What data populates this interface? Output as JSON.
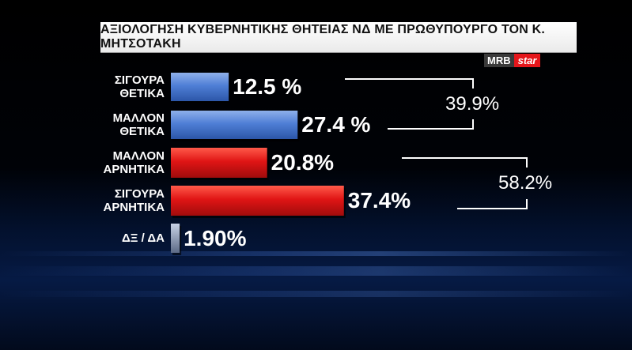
{
  "header": {
    "title": "ΑΞΙΟΛΟΓΗΣΗ ΚΥΒΕΡΝΗΤΙΚΗΣ ΘΗΤΕΙΑΣ ΝΔ ΜΕ ΠΡΩΘΥΠΟΥΡΓΟ ΤΟΝ Κ. ΜΗΤΣΟΤΑΚΗ",
    "logo_left": "MRB",
    "logo_right": "star"
  },
  "chart_data": {
    "type": "bar",
    "orientation": "horizontal",
    "title": "ΑΞΙΟΛΟΓΗΣΗ ΚΥΒΕΡΝΗΤΙΚΗΣ ΘΗΤΕΙΑΣ ΝΔ ΜΕ ΠΡΩΘΥΠΟΥΡΓΟ ΤΟΝ Κ. ΜΗΤΣΟΤΑΚΗ",
    "categories": [
      [
        "ΣΙΓΟΥΡΑ",
        "ΘΕΤΙΚΑ"
      ],
      [
        "ΜΑΛΛΟΝ",
        "ΘΕΤΙΚΑ"
      ],
      [
        "ΜΑΛΛΟΝ",
        "ΑΡΝΗΤΙΚΑ"
      ],
      [
        "ΣΙΓΟΥΡΑ",
        "ΑΡΝΗΤΙΚΑ"
      ],
      [
        "ΔΞ / ΔΑ"
      ]
    ],
    "values": [
      12.5,
      27.4,
      20.8,
      37.4,
      1.9
    ],
    "value_labels": [
      "12.5 %",
      "27.4 %",
      "20.8%",
      "37.4%",
      "1.90%"
    ],
    "colors": [
      "#4f7fd6",
      "#4f7fd6",
      "#e01515",
      "#e01515",
      "#8a9ab8"
    ],
    "groups": [
      {
        "label": "39.9%",
        "value": 39.9,
        "from": 0,
        "to": 1
      },
      {
        "label": "58.2%",
        "value": 58.2,
        "from": 2,
        "to": 3
      }
    ],
    "xlim": [
      0,
      40
    ]
  }
}
